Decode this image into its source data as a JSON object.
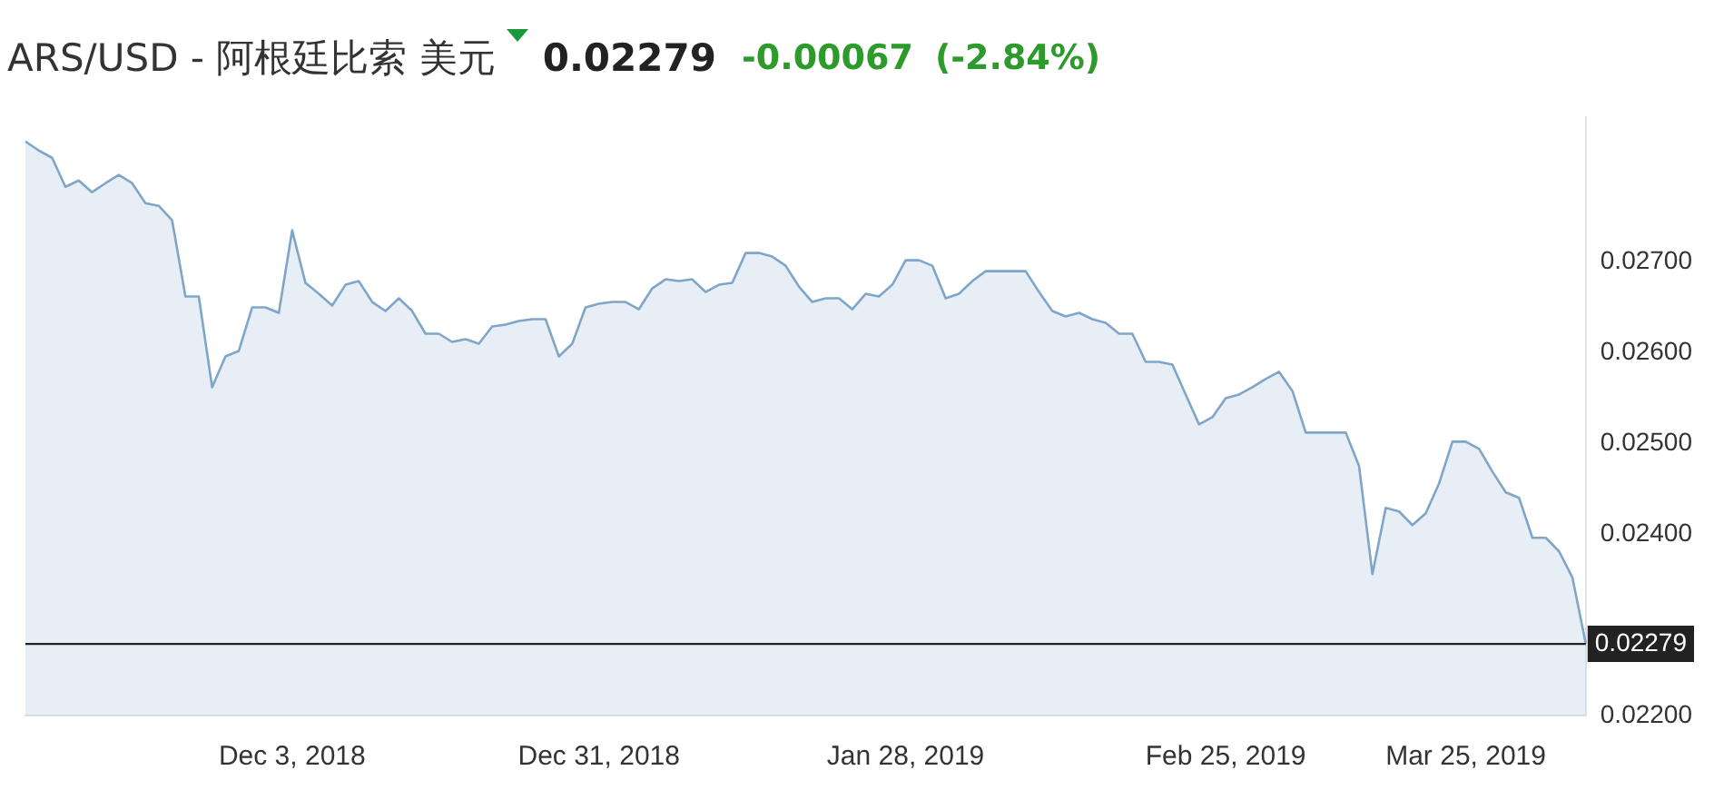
{
  "chart_data": {
    "type": "area",
    "title": "ARS/USD - 阿根廷比索 美元",
    "annotations": [
      "0.02279",
      "-0.00067",
      "(-2.84%)"
    ],
    "categories": [
      null,
      null,
      null,
      null,
      null,
      null,
      null,
      null,
      null,
      null,
      null,
      null,
      null,
      null,
      null,
      null,
      null,
      null,
      null,
      null,
      "Dec 3, 2018",
      null,
      null,
      null,
      null,
      null,
      null,
      null,
      null,
      null,
      null,
      null,
      null,
      null,
      null,
      null,
      null,
      null,
      null,
      null,
      null,
      null,
      null,
      "Dec 31, 2018",
      null,
      null,
      null,
      null,
      null,
      null,
      null,
      null,
      null,
      null,
      null,
      null,
      null,
      null,
      null,
      null,
      null,
      null,
      null,
      null,
      null,
      null,
      "Jan 28, 2019",
      null,
      null,
      null,
      null,
      null,
      null,
      null,
      null,
      null,
      null,
      null,
      null,
      null,
      null,
      null,
      null,
      null,
      null,
      null,
      null,
      null,
      null,
      null,
      "Feb 25, 2019",
      null,
      null,
      null,
      null,
      null,
      null,
      null,
      null,
      null,
      null,
      null,
      null,
      null,
      null,
      null,
      null,
      null,
      "Mar 25, 2019",
      null,
      null,
      null,
      null,
      null,
      null,
      null,
      null,
      null
    ],
    "series": [
      {
        "color": "#7fa6c8",
        "values": [
          0.02833,
          0.02823,
          0.02815,
          0.02783,
          0.0279,
          0.02777,
          0.02787,
          0.02796,
          0.02787,
          0.02765,
          0.02762,
          0.02746,
          0.02662,
          0.02662,
          0.02562,
          0.02596,
          0.02602,
          0.0265,
          0.0265,
          0.02644,
          0.02735,
          0.02677,
          0.02665,
          0.02652,
          0.02675,
          0.02679,
          0.02656,
          0.02646,
          0.0266,
          0.02646,
          0.02621,
          0.02621,
          0.02612,
          0.02615,
          0.0261,
          0.02629,
          0.02631,
          0.02635,
          0.02637,
          0.02637,
          0.02596,
          0.0261,
          0.0265,
          0.02654,
          0.02656,
          0.02656,
          0.02648,
          0.02671,
          0.02681,
          0.02679,
          0.02681,
          0.02667,
          0.02675,
          0.02677,
          0.0271,
          0.0271,
          0.02706,
          0.02696,
          0.02673,
          0.02656,
          0.0266,
          0.0266,
          0.02648,
          0.02665,
          0.02662,
          0.02675,
          0.02702,
          0.02702,
          0.02696,
          0.0266,
          0.02665,
          0.02679,
          0.0269,
          0.0269,
          0.0269,
          0.0269,
          0.02667,
          0.02646,
          0.0264,
          0.02644,
          0.02637,
          0.02633,
          0.02621,
          0.02621,
          0.0259,
          0.0259,
          0.02587,
          0.02554,
          0.02521,
          0.02529,
          0.0255,
          0.02554,
          0.02562,
          0.02571,
          0.02579,
          0.02558,
          0.02512,
          0.02512,
          0.02512,
          0.02512,
          0.02475,
          0.02356,
          0.02429,
          0.02425,
          0.0241,
          0.02423,
          0.02456,
          0.02502,
          0.02502,
          0.02494,
          0.02469,
          0.02446,
          0.0244,
          0.02396,
          0.02396,
          0.02381,
          0.02352,
          0.02279
        ]
      }
    ],
    "ylim": [
      0.022,
      0.0286
    ],
    "yticks": [
      {
        "value": 0.022,
        "label": "0.02200"
      },
      {
        "value": 0.024,
        "label": "0.02400"
      },
      {
        "value": 0.025,
        "label": "0.02500"
      },
      {
        "value": 0.026,
        "label": "0.02600"
      },
      {
        "value": 0.027,
        "label": "0.02700"
      }
    ],
    "ref_lines": [
      {
        "axis": "y",
        "value": 0.02279,
        "label": "0.02279",
        "color": "#222222"
      }
    ],
    "grid": false,
    "legend": false,
    "marker": "none",
    "line_style": "solid"
  }
}
